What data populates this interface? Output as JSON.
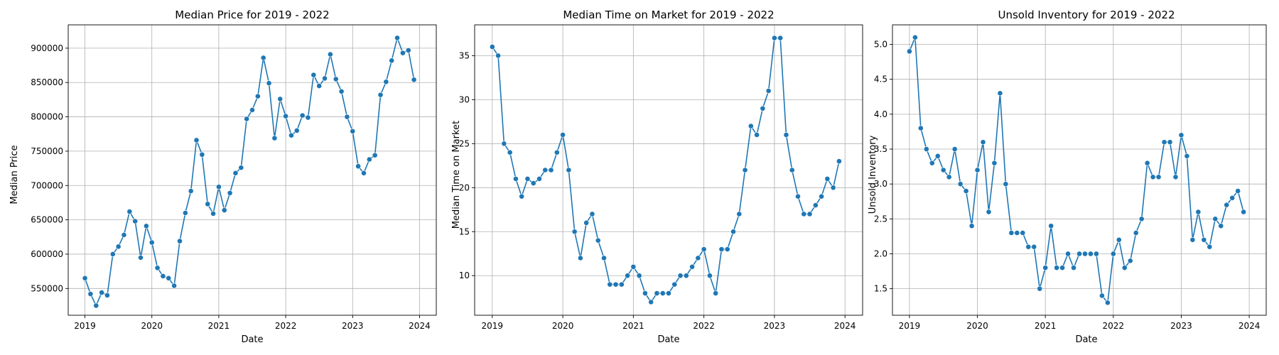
{
  "figure": {
    "line_color": "#1f77b4",
    "grid": true
  },
  "chart_data": [
    {
      "type": "line",
      "title": "Median Price for 2019 - 2022",
      "xlabel": "Date",
      "ylabel": "Median Price",
      "x_start": "2019-01",
      "x_interval": "monthly",
      "xlim": [
        2018.75,
        2024.25
      ],
      "ylim": [
        511000,
        934000
      ],
      "xticks": [
        2019,
        2020,
        2021,
        2022,
        2023,
        2024
      ],
      "yticks": [
        550000,
        600000,
        650000,
        700000,
        750000,
        800000,
        850000,
        900000
      ],
      "series": [
        {
          "values": [
            565000,
            542000,
            525000,
            544000,
            540000,
            600000,
            611000,
            628000,
            662000,
            648000,
            595000,
            641000,
            617000,
            580000,
            568000,
            565000,
            554000,
            619000,
            660000,
            692000,
            766000,
            745000,
            673000,
            659000,
            698000,
            664000,
            689000,
            718000,
            726000,
            797000,
            810000,
            830000,
            886000,
            849000,
            769000,
            826000,
            801000,
            773000,
            780000,
            802000,
            799000,
            861000,
            845000,
            856000,
            891000,
            855000,
            837000,
            800000,
            779000,
            728000,
            718000,
            738000,
            744000,
            832000,
            851000,
            882000,
            915000,
            893000,
            897000,
            854000
          ]
        }
      ]
    },
    {
      "type": "line",
      "title": "Median Time on Market for 2019 - 2022",
      "xlabel": "Date",
      "ylabel": "Median Time on Market",
      "x_start": "2019-01",
      "x_interval": "monthly",
      "xlim": [
        2018.75,
        2024.25
      ],
      "ylim": [
        5.5,
        38.5
      ],
      "xticks": [
        2019,
        2020,
        2021,
        2022,
        2023,
        2024
      ],
      "yticks": [
        10,
        15,
        20,
        25,
        30,
        35
      ],
      "series": [
        {
          "values": [
            36,
            35,
            25,
            24,
            21,
            19,
            21,
            20.5,
            21,
            22,
            22,
            24,
            26,
            22,
            15,
            12,
            16,
            17,
            14,
            12,
            9,
            9,
            9,
            10,
            11,
            10,
            8,
            7,
            8,
            8,
            8,
            9,
            10,
            10,
            11,
            12,
            13,
            10,
            8,
            13,
            13,
            15,
            17,
            22,
            27,
            26,
            29,
            31,
            37,
            37,
            26,
            22,
            19,
            17,
            17,
            18,
            19,
            21,
            20,
            23
          ]
        }
      ]
    },
    {
      "type": "line",
      "title": "Unsold Inventory for 2019 - 2022",
      "xlabel": "Date",
      "ylabel": "Unsold Inventory",
      "x_start": "2019-01",
      "x_interval": "monthly",
      "xlim": [
        2018.75,
        2024.25
      ],
      "ylim": [
        1.12,
        5.28
      ],
      "xticks": [
        2019,
        2020,
        2021,
        2022,
        2023,
        2024
      ],
      "yticks": [
        1.5,
        2.0,
        2.5,
        3.0,
        3.5,
        4.0,
        4.5,
        5.0
      ],
      "series": [
        {
          "values": [
            4.9,
            5.1,
            3.8,
            3.5,
            3.3,
            3.4,
            3.2,
            3.1,
            3.5,
            3.0,
            2.9,
            2.4,
            3.2,
            3.6,
            2.6,
            3.3,
            4.3,
            3.0,
            2.3,
            2.3,
            2.3,
            2.1,
            2.1,
            1.5,
            1.8,
            2.4,
            1.8,
            1.8,
            2.0,
            1.8,
            2.0,
            2.0,
            2.0,
            2.0,
            1.4,
            1.3,
            2.0,
            2.2,
            1.8,
            1.9,
            2.3,
            2.5,
            3.3,
            3.1,
            3.1,
            3.6,
            3.6,
            3.1,
            3.7,
            3.4,
            2.2,
            2.6,
            2.2,
            2.1,
            2.5,
            2.4,
            2.7,
            2.8,
            2.9,
            2.6
          ]
        }
      ]
    }
  ]
}
